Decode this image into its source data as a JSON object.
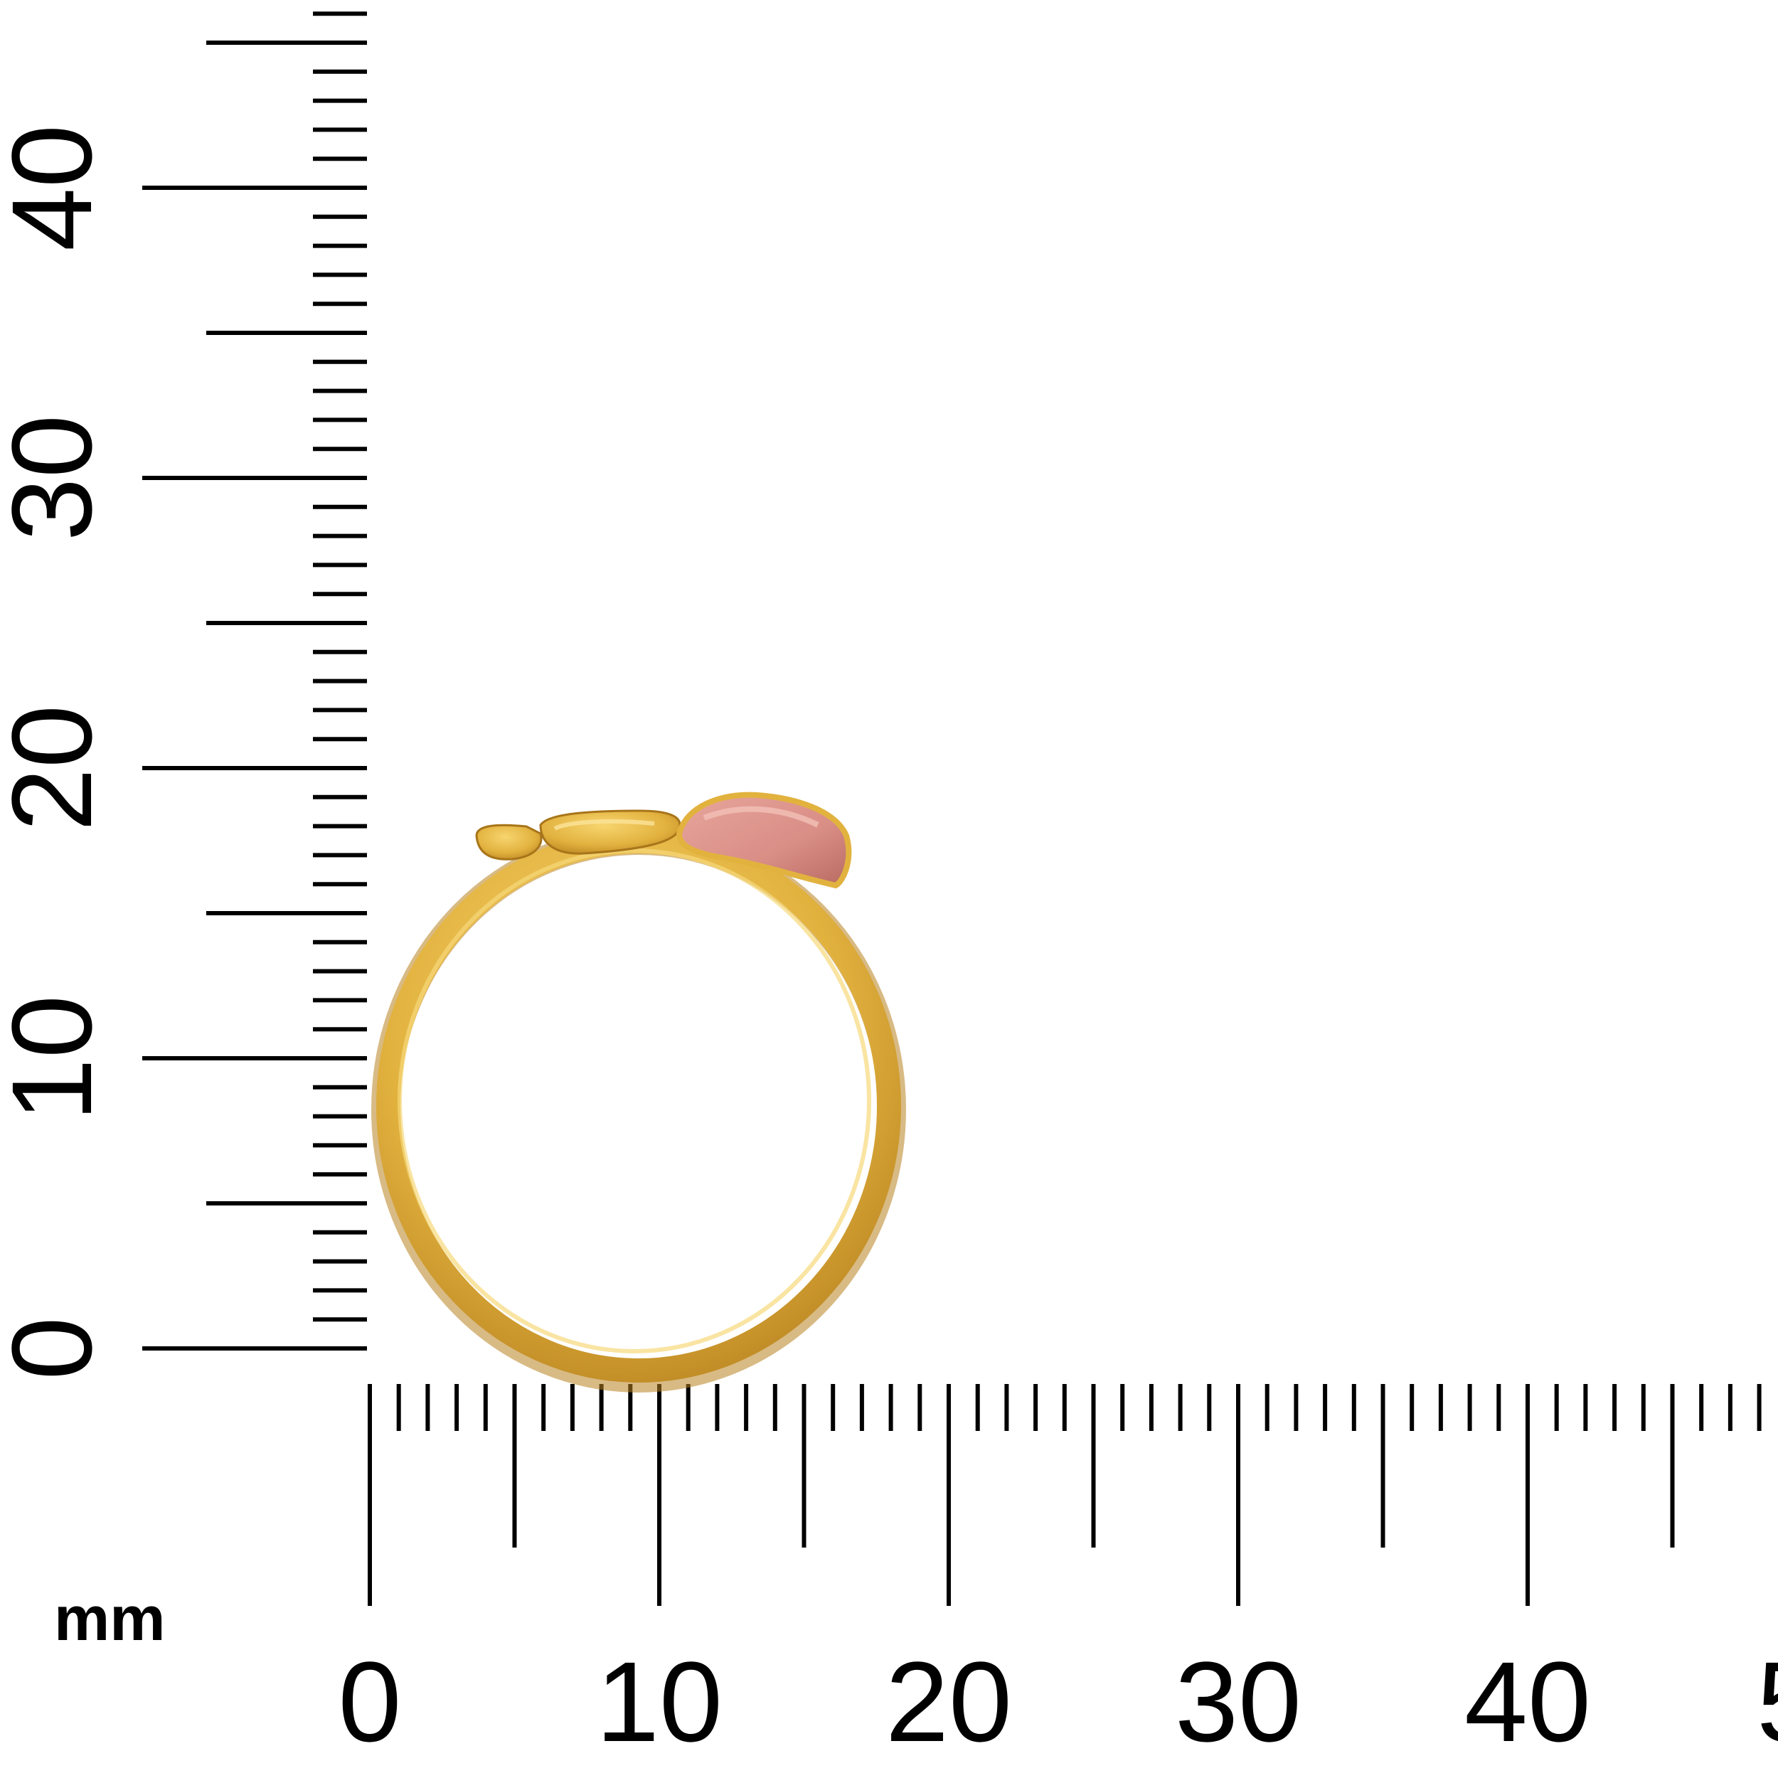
{
  "unit_label": "mm",
  "y_ruler": {
    "labels": [
      "0",
      "10",
      "20",
      "30",
      "40"
    ]
  },
  "x_ruler": {
    "labels": [
      "0",
      "10",
      "20",
      "30",
      "40",
      "5"
    ]
  },
  "ring": {
    "band_color": "#e2b23f",
    "enamel_color": "#d98e86"
  }
}
